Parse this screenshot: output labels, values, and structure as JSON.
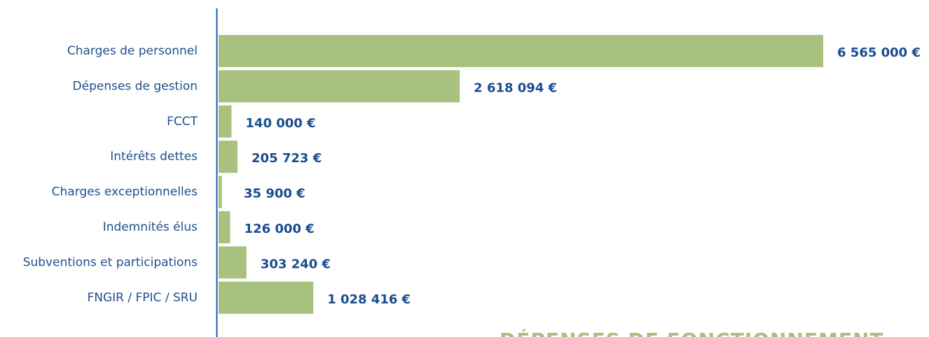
{
  "chart_data": {
    "type": "bar",
    "orientation": "horizontal",
    "title": "DÉPENSES DE FONCTIONNEMENT",
    "categories": [
      "Charges de personnel",
      "Dépenses de gestion",
      "FCCT",
      "Intérêts dettes",
      "Charges exceptionnelles",
      "Indemnités élus",
      "Subventions et participations",
      "FNGIR / FPIC / SRU"
    ],
    "values": [
      6565000,
      2618094,
      140000,
      205723,
      35900,
      126000,
      303240,
      1028416
    ],
    "value_labels": [
      "6 565 000 €",
      "2 618 094 €",
      "140 000 €",
      "205 723 €",
      "35 900 €",
      "126 000 €",
      "303 240 €",
      "1 028 416 €"
    ],
    "color": "#a8c17f"
  }
}
